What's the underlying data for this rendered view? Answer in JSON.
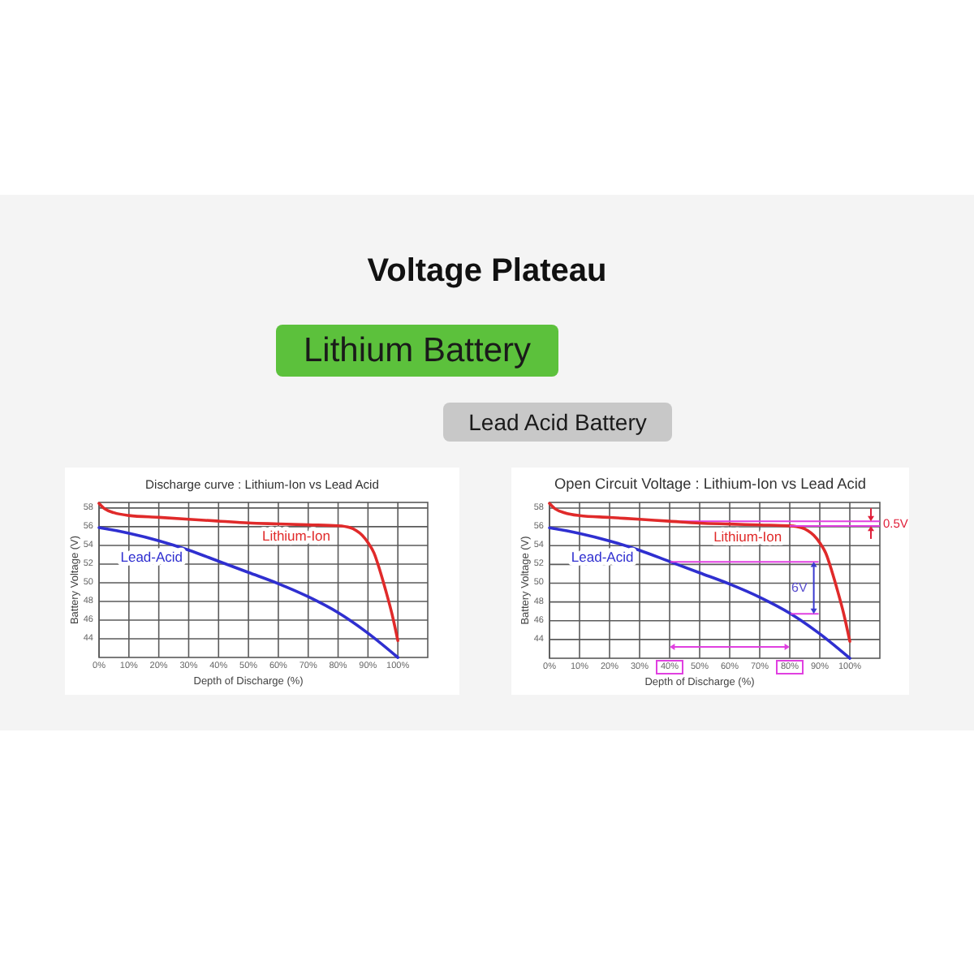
{
  "chart_data": [
    {
      "type": "other",
      "title": "Voltage Plateau",
      "annotations": [
        "Lithium Battery",
        "Lead Acid Battery"
      ]
    },
    {
      "type": "line",
      "title": "Discharge curve : Lithium-Ion vs Lead Acid",
      "xlabel": "Depth of Discharge (%)",
      "ylabel": "Battery Voltage (V)",
      "xlim": [
        0,
        110
      ],
      "xticks": [
        {
          "value": 0,
          "label": "0%"
        },
        {
          "value": 10,
          "label": "10%"
        },
        {
          "value": 20,
          "label": "20%"
        },
        {
          "value": 30,
          "label": "30%"
        },
        {
          "value": 40,
          "label": "40%"
        },
        {
          "value": 50,
          "label": "50%"
        },
        {
          "value": 60,
          "label": "60%"
        },
        {
          "value": 70,
          "label": "70%"
        },
        {
          "value": 80,
          "label": "80%"
        },
        {
          "value": 90,
          "label": "90%"
        },
        {
          "value": 100,
          "label": "100%"
        }
      ],
      "ylim": [
        42,
        58.6
      ],
      "yticks": [
        44,
        46,
        48,
        50,
        52,
        54,
        56,
        58
      ],
      "grid": true,
      "series": [
        {
          "name": "Lithium-Ion",
          "color": "#e02a2a",
          "x": [
            0,
            2,
            5,
            10,
            20,
            30,
            40,
            50,
            60,
            70,
            80,
            84,
            86,
            88,
            90,
            92,
            94,
            96,
            98,
            100
          ],
          "values": [
            58.5,
            57.9,
            57.5,
            57.2,
            57.0,
            56.8,
            56.6,
            56.4,
            56.3,
            56.2,
            56.1,
            55.9,
            55.6,
            55.1,
            54.3,
            53.2,
            51.3,
            49.1,
            46.7,
            43.8
          ]
        },
        {
          "name": "Lead-Acid",
          "color": "#2f2fd0",
          "x": [
            0,
            10,
            20,
            30,
            40,
            50,
            60,
            70,
            80,
            90,
            100
          ],
          "values": [
            55.9,
            55.3,
            54.5,
            53.5,
            52.3,
            51.1,
            49.9,
            48.5,
            46.8,
            44.6,
            42.0
          ]
        }
      ]
    },
    {
      "type": "line",
      "title": "Open Circuit Voltage : Lithium-Ion vs Lead Acid",
      "xlabel": "Depth of Discharge (%)",
      "ylabel": "Battery Voltage (V)",
      "xlim": [
        0,
        110
      ],
      "xticks": [
        {
          "value": 0,
          "label": "0%"
        },
        {
          "value": 10,
          "label": "10%"
        },
        {
          "value": 20,
          "label": "20%"
        },
        {
          "value": 30,
          "label": "30%"
        },
        {
          "value": 40,
          "label": "40%"
        },
        {
          "value": 50,
          "label": "50%"
        },
        {
          "value": 60,
          "label": "60%"
        },
        {
          "value": 70,
          "label": "70%"
        },
        {
          "value": 80,
          "label": "80%"
        },
        {
          "value": 90,
          "label": "90%"
        },
        {
          "value": 100,
          "label": "100%"
        }
      ],
      "ylim": [
        42,
        58.6
      ],
      "yticks": [
        44,
        46,
        48,
        50,
        52,
        54,
        56,
        58
      ],
      "grid": true,
      "series": [
        {
          "name": "Lithium-Ion",
          "color": "#e02a2a",
          "x": [
            0,
            2,
            5,
            10,
            20,
            30,
            40,
            50,
            60,
            70,
            80,
            84,
            86,
            88,
            90,
            92,
            94,
            96,
            98,
            100
          ],
          "values": [
            58.5,
            57.9,
            57.5,
            57.2,
            57.0,
            56.8,
            56.6,
            56.4,
            56.3,
            56.2,
            56.1,
            55.9,
            55.6,
            55.1,
            54.3,
            53.2,
            51.3,
            49.1,
            46.7,
            43.8
          ]
        },
        {
          "name": "Lead-Acid",
          "color": "#2f2fd0",
          "x": [
            0,
            10,
            20,
            30,
            40,
            50,
            60,
            70,
            80,
            90,
            100
          ],
          "values": [
            55.9,
            55.3,
            54.5,
            53.5,
            52.3,
            51.1,
            49.9,
            48.5,
            46.8,
            44.6,
            42.0
          ]
        }
      ],
      "ref_lines": [
        {
          "axis": "y",
          "value": 56.6,
          "color": "#e040e0"
        }
      ],
      "annotations": [
        {
          "text": "0.5V",
          "x": 80,
          "y": 56.1
        },
        "6V"
      ]
    }
  ]
}
